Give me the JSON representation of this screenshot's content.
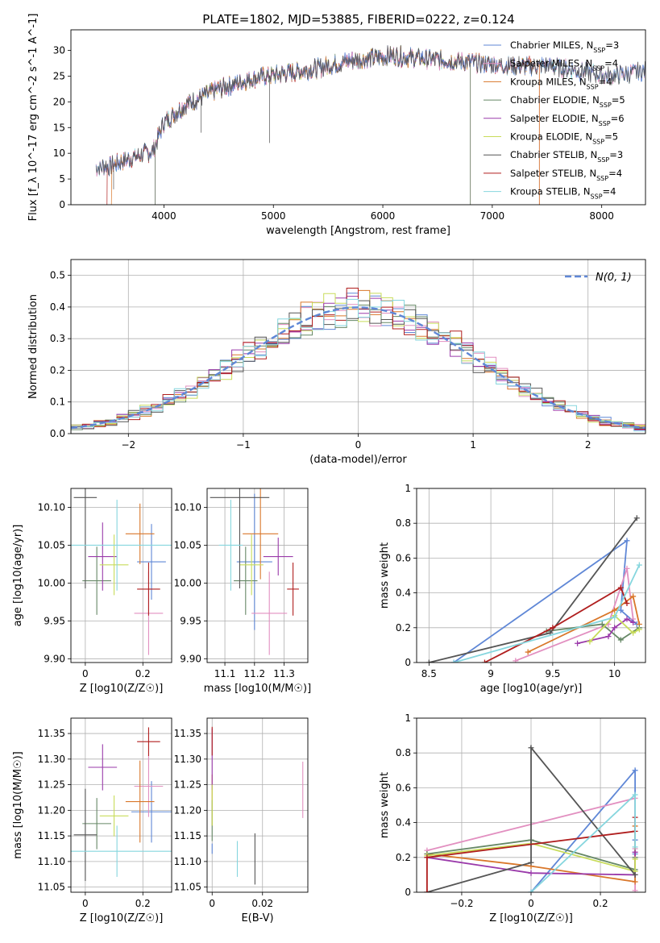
{
  "figure_title": "PLATE=1802, MJD=53885, FIBERID=0222, z=0.124",
  "colors": {
    "Chabrier MILES": "#5f87d6",
    "Salpeter MILES": "#e28fc0",
    "Kroupa MILES": "#d9772a",
    "Chabrier ELODIE": "#668866",
    "Salpeter ELODIE": "#9a3aaa",
    "Kroupa ELODIE": "#c8dc5a",
    "Chabrier STELIB": "#555555",
    "Salpeter STELIB": "#b01e1e",
    "Kroupa STELIB": "#86d6de"
  },
  "chart_data": [
    {
      "id": "spectrum",
      "type": "line",
      "xlabel": "wavelength [Angstrom, rest frame]",
      "ylabel": "Flux [f_λ 10^-17 erg cm^-2 s^-1 A^-1]",
      "xlim": [
        3150,
        8400
      ],
      "ylim": [
        0,
        34
      ],
      "xticks": [
        4000,
        5000,
        6000,
        7000,
        8000
      ],
      "yticks": [
        0,
        5,
        10,
        15,
        20,
        25,
        30
      ],
      "legend": [
        {
          "label": "Chabrier MILES, N",
          "sub": "SSP",
          "suffix": "=3",
          "key": "Chabrier MILES"
        },
        {
          "label": "Salpeter MILES, N",
          "sub": "SSP",
          "suffix": "=4",
          "key": "Salpeter MILES"
        },
        {
          "label": "Kroupa MILES, N",
          "sub": "SSP",
          "suffix": "=4",
          "key": "Kroupa MILES"
        },
        {
          "label": "Chabrier ELODIE, N",
          "sub": "SSP",
          "suffix": "=5",
          "key": "Chabrier ELODIE"
        },
        {
          "label": "Salpeter ELODIE, N",
          "sub": "SSP",
          "suffix": "=6",
          "key": "Salpeter ELODIE"
        },
        {
          "label": "Kroupa ELODIE, N",
          "sub": "SSP",
          "suffix": "=5",
          "key": "Kroupa ELODIE"
        },
        {
          "label": "Chabrier STELIB, N",
          "sub": "SSP",
          "suffix": "=3",
          "key": "Chabrier STELIB"
        },
        {
          "label": "Salpeter STELIB, N",
          "sub": "SSP",
          "suffix": "=4",
          "key": "Salpeter STELIB"
        },
        {
          "label": "Kroupa STELIB, N",
          "sub": "SSP",
          "suffix": "=4",
          "key": "Kroupa STELIB"
        }
      ],
      "continuum": [
        [
          3380,
          7.2
        ],
        [
          3500,
          7.5
        ],
        [
          3700,
          9
        ],
        [
          3900,
          10.5
        ],
        [
          4000,
          16
        ],
        [
          4200,
          19.5
        ],
        [
          4500,
          22.5
        ],
        [
          4800,
          24.5
        ],
        [
          5100,
          25.5
        ],
        [
          5400,
          26.5
        ],
        [
          5700,
          28
        ],
        [
          5900,
          28.5
        ],
        [
          6100,
          29
        ],
        [
          6300,
          28.5
        ],
        [
          6600,
          28
        ],
        [
          6900,
          27.5
        ],
        [
          7200,
          27
        ],
        [
          7500,
          27
        ],
        [
          7800,
          26
        ],
        [
          8050,
          25
        ],
        [
          8400,
          26
        ]
      ],
      "dropouts": [
        {
          "key": "Salpeter STELIB",
          "from": 3480,
          "to": 7430
        },
        {
          "key": "Kroupa ELODIE",
          "from": 3920,
          "to": 6800
        },
        {
          "key": "Chabrier ELODIE",
          "from": 3920,
          "to": 6800
        },
        {
          "key": "Salpeter ELODIE",
          "from": 3920,
          "to": 6800
        },
        {
          "key": "Kroupa MILES",
          "from": 3520,
          "to": 7430
        },
        {
          "key": "Chabrier STELIB",
          "from": 3380,
          "to": 8400
        }
      ]
    },
    {
      "id": "residuals",
      "type": "step",
      "xlabel": "(data-model)/error",
      "ylabel": "Normed distribution",
      "xlim": [
        -2.5,
        2.5
      ],
      "ylim": [
        0,
        0.55
      ],
      "xticks": [
        -2,
        -1,
        0,
        1,
        2
      ],
      "yticks": [
        0.0,
        0.1,
        0.2,
        0.3,
        0.4,
        0.5
      ],
      "bin_width": 0.1,
      "legend_label": "N(0, 1)",
      "seeds": [
        1,
        2,
        3,
        4,
        5,
        6,
        7,
        8,
        9
      ]
    },
    {
      "id": "age_Z",
      "type": "errorbar",
      "xlabel": "Z [log10(Z/Z☉)]",
      "ylabel": "age  [log10(age/yr)]",
      "xlim": [
        -0.05,
        0.3
      ],
      "ylim": [
        9.895,
        10.125
      ],
      "xticks": [
        0.0,
        0.2
      ],
      "yticks": [
        9.9,
        9.95,
        10.0,
        10.05,
        10.1
      ],
      "points": [
        {
          "key": "Chabrier MILES",
          "x": 0.23,
          "xerr": 0.05,
          "y": 10.028,
          "yerr": 0.05
        },
        {
          "key": "Salpeter MILES",
          "x": 0.22,
          "xerr": 0.05,
          "y": 9.96,
          "yerr": 0.055
        },
        {
          "key": "Kroupa MILES",
          "x": 0.19,
          "xerr": 0.05,
          "y": 10.065,
          "yerr": 0.04
        },
        {
          "key": "Chabrier ELODIE",
          "x": 0.04,
          "xerr": 0.05,
          "y": 10.003,
          "yerr": 0.045
        },
        {
          "key": "Salpeter ELODIE",
          "x": 0.06,
          "xerr": 0.05,
          "y": 10.035,
          "yerr": 0.045
        },
        {
          "key": "Kroupa ELODIE",
          "x": 0.1,
          "xerr": 0.05,
          "y": 10.024,
          "yerr": 0.04
        },
        {
          "key": "Chabrier STELIB",
          "x": 0.0,
          "xerr": 0.04,
          "y": 10.113,
          "yerr": 0.12
        },
        {
          "key": "Salpeter STELIB",
          "x": 0.22,
          "xerr": 0.04,
          "y": 9.992,
          "yerr": 0.035
        },
        {
          "key": "Kroupa STELIB",
          "x": 0.11,
          "xerr": 0.2,
          "y": 10.05,
          "yerr": 0.06
        }
      ]
    },
    {
      "id": "age_mass",
      "type": "errorbar",
      "xlabel": "mass [log10(M/M☉)]",
      "ylabel": "",
      "xlim": [
        11.04,
        11.38
      ],
      "ylim": [
        9.895,
        10.125
      ],
      "xticks": [
        11.1,
        11.2,
        11.3
      ],
      "yticks": [
        9.9,
        9.95,
        10.0,
        10.05,
        10.1
      ],
      "points": [
        {
          "key": "Chabrier MILES",
          "x": 11.2,
          "xerr": 0.06,
          "y": 10.028,
          "yerr": 0.09
        },
        {
          "key": "Salpeter MILES",
          "x": 11.25,
          "xerr": 0.06,
          "y": 9.96,
          "yerr": 0.055
        },
        {
          "key": "Kroupa MILES",
          "x": 11.22,
          "xerr": 0.06,
          "y": 10.065,
          "yerr": 0.06
        },
        {
          "key": "Chabrier ELODIE",
          "x": 11.17,
          "xerr": 0.04,
          "y": 10.003,
          "yerr": 0.045
        },
        {
          "key": "Salpeter ELODIE",
          "x": 11.28,
          "xerr": 0.05,
          "y": 10.035,
          "yerr": 0.025
        },
        {
          "key": "Kroupa ELODIE",
          "x": 11.19,
          "xerr": 0.04,
          "y": 10.024,
          "yerr": 0.04
        },
        {
          "key": "Chabrier STELIB",
          "x": 11.15,
          "xerr": 0.1,
          "y": 10.113,
          "yerr": 0.12
        },
        {
          "key": "Salpeter STELIB",
          "x": 11.33,
          "xerr": 0.02,
          "y": 9.992,
          "yerr": 0.035
        },
        {
          "key": "Kroupa STELIB",
          "x": 11.12,
          "xerr": 0.04,
          "y": 10.05,
          "yerr": 0.06
        }
      ]
    },
    {
      "id": "mass_Z",
      "type": "errorbar",
      "xlabel": "Z [log10(Z/Z☉)]",
      "ylabel": "mass [log10(M/M☉)]",
      "xlim": [
        -0.05,
        0.3
      ],
      "ylim": [
        11.04,
        11.38
      ],
      "xticks": [
        0.0,
        0.2
      ],
      "yticks": [
        11.05,
        11.1,
        11.15,
        11.2,
        11.25,
        11.3,
        11.35
      ],
      "points": [
        {
          "key": "Chabrier MILES",
          "x": 0.23,
          "xerr": 0.07,
          "y": 11.197,
          "yerr": 0.06
        },
        {
          "key": "Salpeter MILES",
          "x": 0.22,
          "xerr": 0.05,
          "y": 11.247,
          "yerr": 0.06
        },
        {
          "key": "Kroupa MILES",
          "x": 0.19,
          "xerr": 0.05,
          "y": 11.217,
          "yerr": 0.08
        },
        {
          "key": "Chabrier ELODIE",
          "x": 0.04,
          "xerr": 0.05,
          "y": 11.174,
          "yerr": 0.05
        },
        {
          "key": "Salpeter ELODIE",
          "x": 0.06,
          "xerr": 0.05,
          "y": 11.284,
          "yerr": 0.045
        },
        {
          "key": "Kroupa ELODIE",
          "x": 0.1,
          "xerr": 0.05,
          "y": 11.189,
          "yerr": 0.04
        },
        {
          "key": "Chabrier STELIB",
          "x": 0.0,
          "xerr": 0.04,
          "y": 11.152,
          "yerr": 0.09
        },
        {
          "key": "Salpeter STELIB",
          "x": 0.22,
          "xerr": 0.04,
          "y": 11.334,
          "yerr": 0.028
        },
        {
          "key": "Kroupa STELIB",
          "x": 0.11,
          "xerr": 0.2,
          "y": 11.12,
          "yerr": 0.05
        }
      ]
    },
    {
      "id": "mass_ebv",
      "type": "errorbar",
      "xlabel": "E(B-V)",
      "ylabel": "",
      "xlim": [
        -0.002,
        0.038
      ],
      "ylim": [
        11.04,
        11.38
      ],
      "xticks": [
        0.0,
        0.02
      ],
      "yticks": [
        11.05,
        11.1,
        11.15,
        11.2,
        11.25,
        11.3,
        11.35
      ],
      "points": [
        {
          "key": "Chabrier MILES",
          "x": 0.0,
          "xerr": 0,
          "y": 11.125,
          "yerr": 0.01
        },
        {
          "key": "Salpeter MILES",
          "x": 0.036,
          "xerr": 0,
          "y": 11.24,
          "yerr": 0.055
        },
        {
          "key": "Kroupa MILES",
          "x": 0.0,
          "xerr": 0,
          "y": 11.22,
          "yerr": 0.05
        },
        {
          "key": "Chabrier ELODIE",
          "x": 0.0,
          "xerr": 0,
          "y": 11.18,
          "yerr": 0.04
        },
        {
          "key": "Salpeter ELODIE",
          "x": 0.0,
          "xerr": 0,
          "y": 11.3,
          "yerr": 0.06
        },
        {
          "key": "Kroupa ELODIE",
          "x": 0.0,
          "xerr": 0,
          "y": 11.21,
          "yerr": 0.04
        },
        {
          "key": "Chabrier STELIB",
          "x": 0.017,
          "xerr": 0,
          "y": 11.105,
          "yerr": 0.05
        },
        {
          "key": "Salpeter STELIB",
          "x": 0.0,
          "xerr": 0,
          "y": 11.335,
          "yerr": 0.028
        },
        {
          "key": "Kroupa STELIB",
          "x": 0.01,
          "xerr": 0,
          "y": 11.105,
          "yerr": 0.035
        }
      ]
    },
    {
      "id": "weight_age",
      "type": "line",
      "xlabel": "age  [log10(age/yr)]",
      "ylabel": "mass weight",
      "xlim": [
        8.4,
        10.25
      ],
      "ylim": [
        0,
        1.0
      ],
      "xticks": [
        8.5,
        9.0,
        9.5,
        10.0
      ],
      "yticks": [
        0.0,
        0.2,
        0.4,
        0.6,
        0.8,
        1.0
      ],
      "series": [
        {
          "key": "Chabrier MILES",
          "x": [
            8.7,
            10.1,
            10.05,
            10.18
          ],
          "y": [
            0.0,
            0.7,
            0.3,
            0.22
          ]
        },
        {
          "key": "Salpeter MILES",
          "x": [
            9.2,
            9.95,
            10.1,
            10.15
          ],
          "y": [
            0.01,
            0.22,
            0.54,
            0.25
          ]
        },
        {
          "key": "Kroupa MILES",
          "x": [
            9.3,
            10.0,
            10.15,
            10.2
          ],
          "y": [
            0.06,
            0.3,
            0.38,
            0.22
          ]
        },
        {
          "key": "Chabrier ELODIE",
          "x": [
            9.45,
            9.9,
            10.05,
            10.2
          ],
          "y": [
            0.18,
            0.22,
            0.13,
            0.2
          ]
        },
        {
          "key": "Salpeter ELODIE",
          "x": [
            9.7,
            9.95,
            10.0,
            10.1,
            10.15
          ],
          "y": [
            0.11,
            0.15,
            0.2,
            0.25,
            0.23
          ]
        },
        {
          "key": "Kroupa ELODIE",
          "x": [
            9.8,
            10.0,
            10.15,
            10.2
          ],
          "y": [
            0.12,
            0.27,
            0.17,
            0.19
          ]
        },
        {
          "key": "Chabrier STELIB",
          "x": [
            8.5,
            9.48,
            10.18
          ],
          "y": [
            0.0,
            0.17,
            0.83
          ]
        },
        {
          "key": "Salpeter STELIB",
          "x": [
            8.95,
            9.5,
            10.05,
            10.1
          ],
          "y": [
            0.0,
            0.2,
            0.43,
            0.34
          ]
        },
        {
          "key": "Kroupa STELIB",
          "x": [
            8.7,
            10.0,
            10.2
          ],
          "y": [
            0.0,
            0.26,
            0.56
          ]
        }
      ]
    },
    {
      "id": "weight_Z",
      "type": "line",
      "xlabel": "Z [log10(Z/Z☉)]",
      "ylabel": "mass weight",
      "xlim": [
        -0.33,
        0.33
      ],
      "ylim": [
        0,
        1.0
      ],
      "xticks": [
        -0.2,
        0.0,
        0.2
      ],
      "yticks": [
        0.0,
        0.2,
        0.4,
        0.6,
        0.8,
        1.0
      ],
      "series": [
        {
          "key": "Chabrier MILES",
          "x": [
            0.0,
            0.3,
            0.3,
            0.3
          ],
          "y": [
            0.0,
            0.7,
            0.3,
            0.22
          ]
        },
        {
          "key": "Salpeter MILES",
          "x": [
            -0.3,
            0.3,
            0.3,
            0.3
          ],
          "y": [
            0.24,
            0.54,
            0.25,
            0.01
          ]
        },
        {
          "key": "Kroupa MILES",
          "x": [
            -0.3,
            0.0,
            0.3,
            0.3
          ],
          "y": [
            0.22,
            0.15,
            0.06,
            0.38
          ]
        },
        {
          "key": "Chabrier ELODIE",
          "x": [
            -0.3,
            0.0,
            0.3,
            0.3
          ],
          "y": [
            0.22,
            0.3,
            0.13,
            0.2
          ]
        },
        {
          "key": "Salpeter ELODIE",
          "x": [
            -0.3,
            0.0,
            0.3,
            0.3
          ],
          "y": [
            0.2,
            0.11,
            0.1,
            0.23
          ]
        },
        {
          "key": "Kroupa ELODIE",
          "x": [
            -0.3,
            0.0,
            0.3,
            0.3
          ],
          "y": [
            0.21,
            0.28,
            0.12,
            0.19
          ]
        },
        {
          "key": "Chabrier STELIB",
          "x": [
            -0.3,
            0.0,
            0.0,
            0.3
          ],
          "y": [
            0.0,
            0.17,
            0.83,
            0.1
          ]
        },
        {
          "key": "Salpeter STELIB",
          "x": [
            -0.3,
            -0.3,
            0.3,
            0.3
          ],
          "y": [
            0.0,
            0.2,
            0.35,
            0.43
          ]
        },
        {
          "key": "Kroupa STELIB",
          "x": [
            0.0,
            0.3,
            0.3
          ],
          "y": [
            0.0,
            0.56,
            0.26
          ]
        }
      ]
    }
  ]
}
